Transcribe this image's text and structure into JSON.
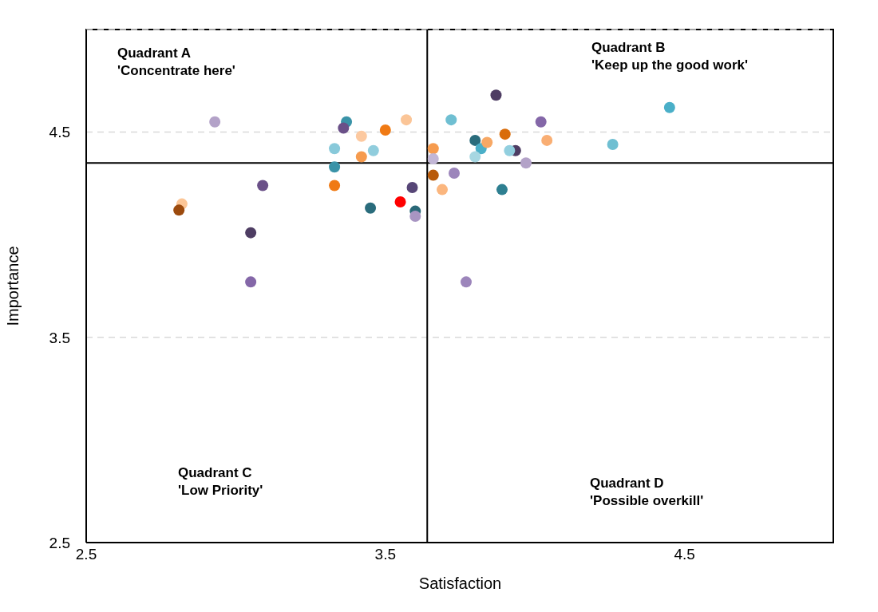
{
  "chart_data": {
    "type": "scatter",
    "xlabel": "Satisfaction",
    "ylabel": "Importance",
    "xlim": [
      2.5,
      5
    ],
    "ylim": [
      2.5,
      5
    ],
    "xticks": [
      2.5,
      3.5,
      4.5
    ],
    "yticks": [
      2.5,
      3.5,
      4.5
    ],
    "grid": "y",
    "marker": "circle",
    "x": [
      2.93,
      2.82,
      2.81,
      3.09,
      3.05,
      3.05,
      3.37,
      3.36,
      3.42,
      3.5,
      3.57,
      3.33,
      3.46,
      3.42,
      3.33,
      3.33,
      3.45,
      3.55,
      3.59,
      3.6,
      3.6,
      3.66,
      3.66,
      3.66,
      3.69,
      3.73,
      3.72,
      3.8,
      3.82,
      3.8,
      3.84,
      3.87,
      3.9,
      3.935,
      3.915,
      3.89,
      3.77,
      4.02,
      4.04,
      3.97,
      4.26,
      4.45
    ],
    "values": [
      4.55,
      4.15,
      4.12,
      4.24,
      4.01,
      3.77,
      4.55,
      4.52,
      4.48,
      4.51,
      4.56,
      4.42,
      4.41,
      4.38,
      4.33,
      4.24,
      4.13,
      4.16,
      4.23,
      4.115,
      4.09,
      4.42,
      4.37,
      4.29,
      4.22,
      4.3,
      4.56,
      4.46,
      4.42,
      4.38,
      4.45,
      4.68,
      4.49,
      4.41,
      4.41,
      4.22,
      3.77,
      4.55,
      4.46,
      4.35,
      4.44,
      4.62
    ],
    "colors": [
      "#b3a2c8",
      "#fcc697",
      "#9c4a0d",
      "#6a5088",
      "#4e3d63",
      "#8467a8",
      "#3a93a8",
      "#6a5088",
      "#fcc9a0",
      "#f07a14",
      "#fbc597",
      "#88c9da",
      "#90cddd",
      "#f69b4e",
      "#3a93a8",
      "#f07a14",
      "#2a6c7c",
      "#ff0000",
      "#574677",
      "#2a6878",
      "#a895c2",
      "#f69b4e",
      "#c2b6d6",
      "#b85a0a",
      "#fbb67e",
      "#9c85bb",
      "#6fbfd2",
      "#2a6c7c",
      "#4aafc8",
      "#a7d7e2",
      "#f7a865",
      "#4e3d63",
      "#d96c0a",
      "#4e3d63",
      "#92cfdf",
      "#2e7f91",
      "#9c85bb",
      "#8467a8",
      "#f9ae73",
      "#b3a2c8",
      "#6fbfd2",
      "#4aafc8"
    ],
    "ref_lines": [
      {
        "axis": "x",
        "value": 3.64,
        "color": "#000000"
      },
      {
        "axis": "y",
        "value": 4.35,
        "color": "#000000"
      }
    ],
    "annotations": [
      "Quadrant A\n'Concentrate here'",
      "Quadrant B\n'Keep up the good work'",
      "Quadrant C\n'Low Priority'",
      "Quadrant D\n'Possible overkill'"
    ]
  }
}
